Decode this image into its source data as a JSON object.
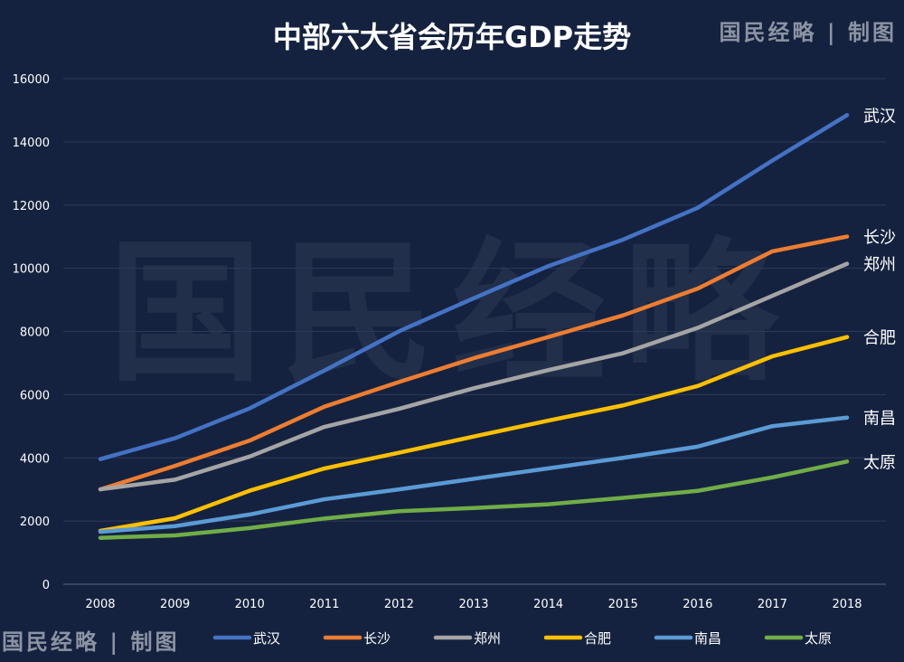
{
  "brand_credit": "国民经略 | 制图",
  "watermark": "国民经略",
  "chart_data": {
    "type": "line",
    "title": "中部六大省会历年GDP走势",
    "xlabel": "",
    "ylabel": "",
    "ylim": [
      0,
      16000
    ],
    "yticks": [
      0,
      2000,
      4000,
      6000,
      8000,
      10000,
      12000,
      14000,
      16000
    ],
    "grid": true,
    "legend_placement": "bottom",
    "categories": [
      "2008",
      "2009",
      "2010",
      "2011",
      "2012",
      "2013",
      "2014",
      "2015",
      "2016",
      "2017",
      "2018"
    ],
    "series": [
      {
        "name": "武汉",
        "color": "#4472c4",
        "values": [
          3960,
          4621,
          5566,
          6762,
          8004,
          9051,
          10069,
          10906,
          11913,
          13410,
          14847
        ]
      },
      {
        "name": "长沙",
        "color": "#ed7d31",
        "values": [
          3001,
          3745,
          4547,
          5619,
          6400,
          7153,
          7825,
          8510,
          9357,
          10536,
          11003
        ]
      },
      {
        "name": "郑州",
        "color": "#a5a5a5",
        "values": [
          3004,
          3309,
          4041,
          4980,
          5550,
          6202,
          6777,
          7312,
          8114,
          9130,
          10143
        ]
      },
      {
        "name": "合肥",
        "color": "#ffc000",
        "values": [
          1689,
          2089,
          2960,
          3663,
          4164,
          4673,
          5180,
          5660,
          6274,
          7213,
          7823
        ]
      },
      {
        "name": "南昌",
        "color": "#5b9bd5",
        "values": [
          1660,
          1838,
          2207,
          2689,
          3001,
          3336,
          3668,
          4000,
          4355,
          5003,
          5275
        ]
      },
      {
        "name": "太原",
        "color": "#70ad47",
        "values": [
          1468,
          1546,
          1778,
          2080,
          2311,
          2413,
          2531,
          2735,
          2955,
          3382,
          3884
        ]
      }
    ]
  }
}
